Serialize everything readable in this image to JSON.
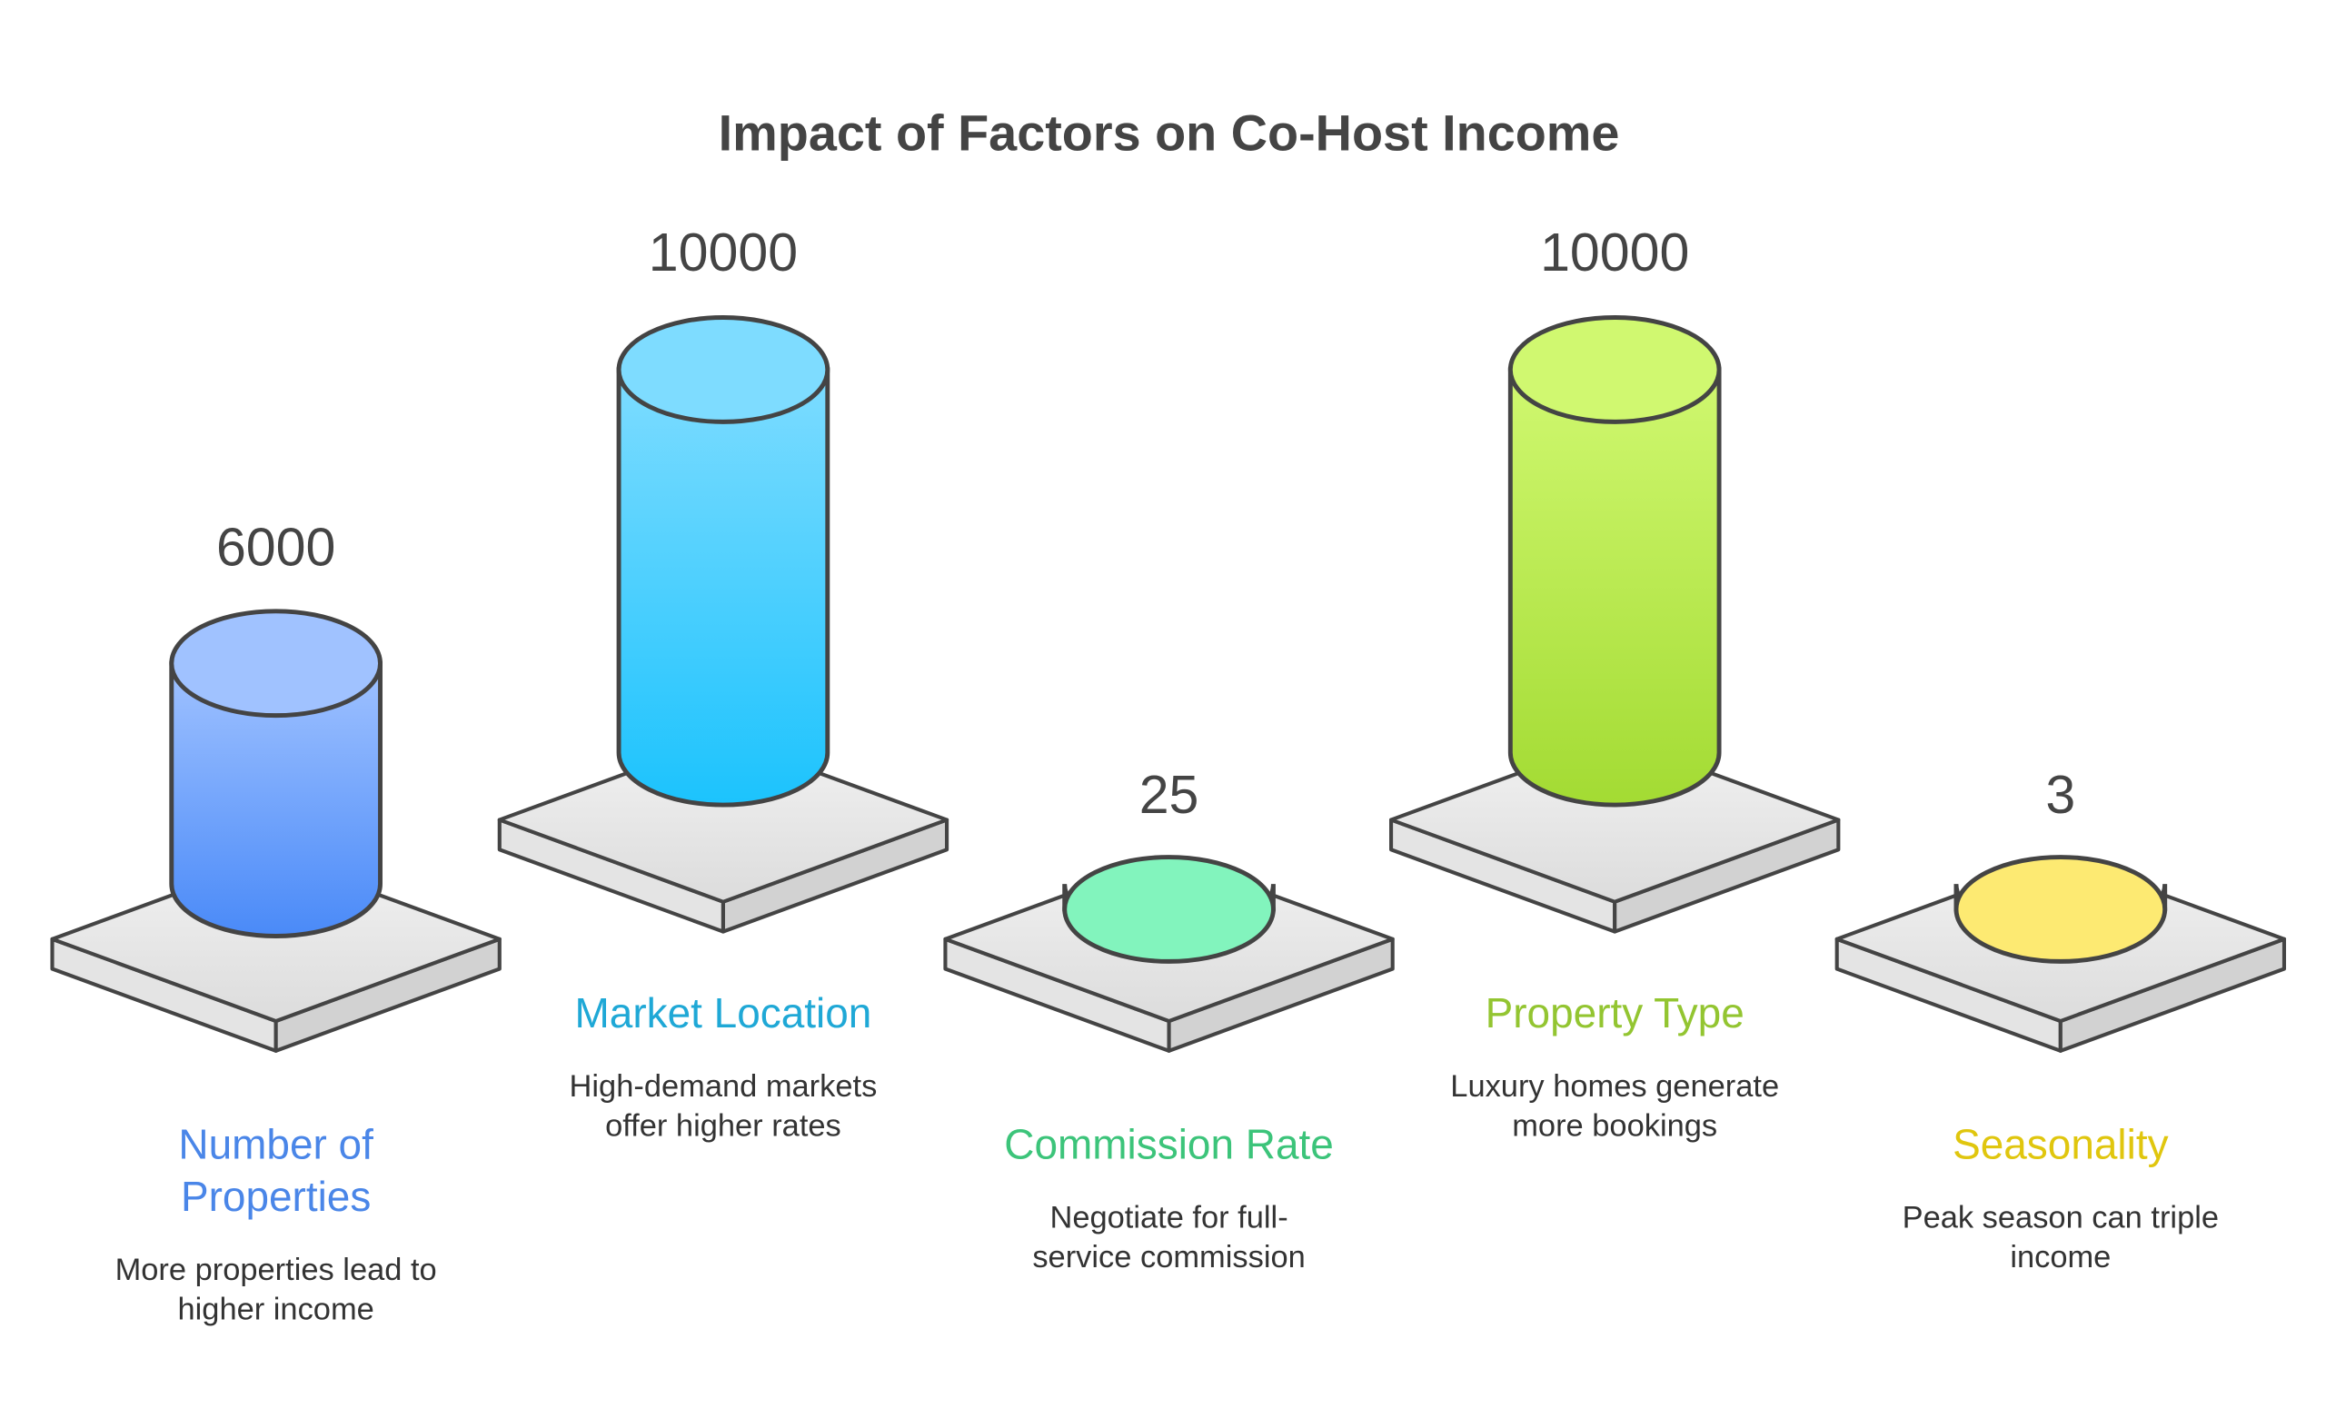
{
  "title": "Impact of Factors on Co-Host Income",
  "items": [
    {
      "value": 6000,
      "label": [
        "Number of",
        "Properties"
      ],
      "description": [
        "More properties lead to",
        "higher income"
      ]
    },
    {
      "value": 10000,
      "label": [
        "Market Location"
      ],
      "description": [
        "High-demand markets",
        "offer higher rates"
      ]
    },
    {
      "value": 25,
      "label": [
        "Commission Rate"
      ],
      "description": [
        "Negotiate for full-",
        "service commission"
      ]
    },
    {
      "value": 10000,
      "label": [
        "Property Type"
      ],
      "description": [
        "Luxury homes generate",
        "more bookings"
      ]
    },
    {
      "value": 3,
      "label": [
        "Seasonality"
      ],
      "description": [
        "Peak season can triple",
        "income"
      ]
    }
  ]
}
